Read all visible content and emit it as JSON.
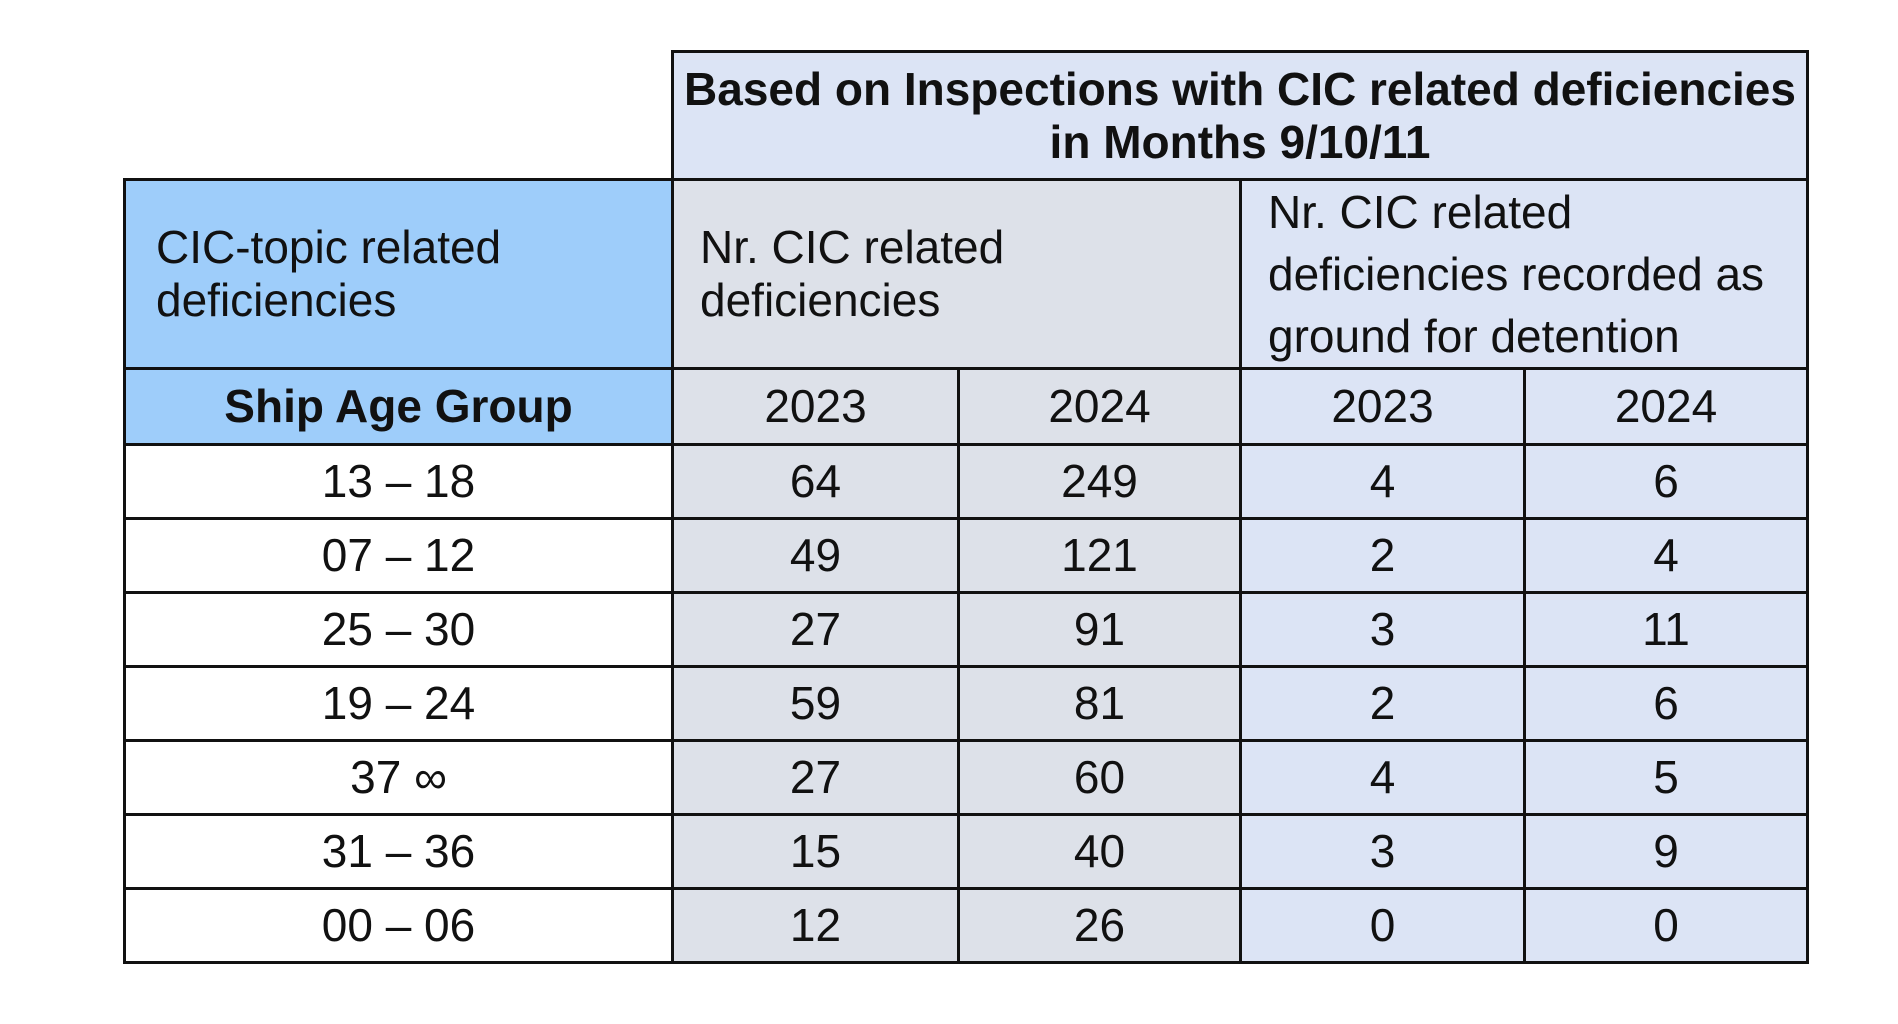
{
  "header": {
    "group_title": "Based on Inspections with CIC related deficiencies in Months 9/10/11",
    "topic_label": "CIC-topic related deficiencies",
    "nr_deficiencies_label": "Nr. CIC related deficiencies",
    "nr_detention_label": "Nr. CIC related deficiencies recorded as ground for detention",
    "age_group_label": "Ship Age Group",
    "years": [
      "2023",
      "2024",
      "2023",
      "2024"
    ]
  },
  "rows": [
    {
      "age": "13 – 18",
      "def_2023": "64",
      "def_2024": "249",
      "det_2023": "4",
      "det_2024": "6"
    },
    {
      "age": "07 – 12",
      "def_2023": "49",
      "def_2024": "121",
      "det_2023": "2",
      "det_2024": "4"
    },
    {
      "age": "25 – 30",
      "def_2023": "27",
      "def_2024": "91",
      "det_2023": "3",
      "det_2024": "11"
    },
    {
      "age": "19 – 24",
      "def_2023": "59",
      "def_2024": "81",
      "det_2023": "2",
      "det_2024": "6"
    },
    {
      "age": "37 ∞",
      "def_2023": "27",
      "def_2024": "60",
      "det_2023": "4",
      "det_2024": "5"
    },
    {
      "age": "31 – 36",
      "def_2023": "15",
      "def_2024": "40",
      "det_2023": "3",
      "det_2024": "9"
    },
    {
      "age": "00 – 06",
      "def_2023": "12",
      "def_2024": "26",
      "det_2023": "0",
      "det_2024": "0"
    }
  ],
  "colors": {
    "header_blue": "#9ecdfa",
    "grey_column": "#dde1e9",
    "lavender_column": "#dce4f5",
    "border": "#111111"
  }
}
